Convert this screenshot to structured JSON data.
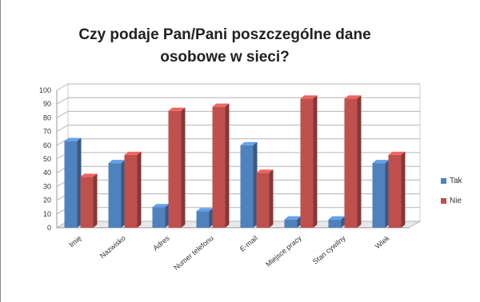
{
  "chart_data": {
    "type": "bar",
    "title": "Czy podaje Pan/Pani poszczególne dane osobowe w sieci?",
    "xlabel": "",
    "ylabel": "",
    "ylim": [
      0,
      100
    ],
    "yticks": [
      0,
      10,
      20,
      30,
      40,
      50,
      60,
      70,
      80,
      90,
      100
    ],
    "grid": true,
    "legend_position": "right",
    "categories": [
      "Imię",
      "Nazwisko",
      "Adres",
      "Numer telefonu",
      "E-mail",
      "Miejsce pracy",
      "Stan cywilny",
      "Wiek"
    ],
    "series": [
      {
        "name": "Tak",
        "color": "#4f81bd",
        "values": [
          63,
          47,
          15,
          12,
          60,
          6,
          6,
          47
        ]
      },
      {
        "name": "Nie",
        "color": "#c0504d",
        "values": [
          37,
          53,
          85,
          88,
          40,
          94,
          94,
          53
        ]
      }
    ]
  }
}
